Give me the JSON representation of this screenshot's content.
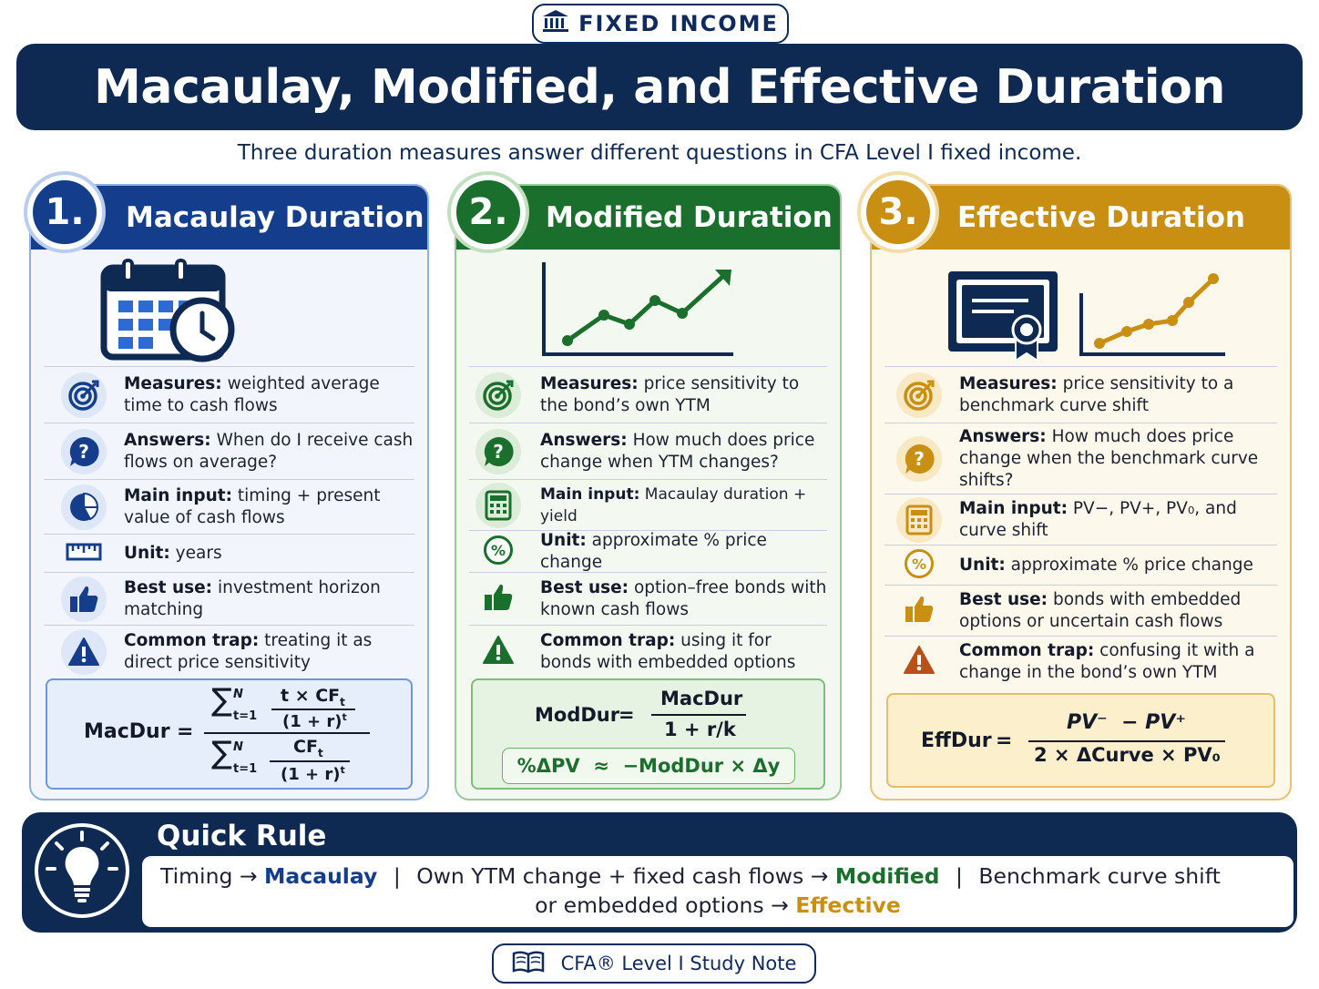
{
  "tag": {
    "icon": "bank-icon",
    "label": "FIXED INCOME"
  },
  "title": "Macaulay, Modified, and Effective Duration",
  "subtitle": "Three duration measures answer different questions in CFA Level I fixed income.",
  "colors": {
    "navy": "#0e2a52",
    "blue": "#143e8c",
    "green": "#1b6f2c",
    "gold": "#c98f12"
  },
  "cards": [
    {
      "number": "1.",
      "title": "Macaulay Duration",
      "illustration": "calendar-clock-icon",
      "rows": [
        {
          "icon": "target-icon",
          "label": "Measures:",
          "text": "weighted average time to cash flows"
        },
        {
          "icon": "question-icon",
          "label": "Answers:",
          "text": "When do I receive cash flows on average?"
        },
        {
          "icon": "pie-chart-icon",
          "label": "Main input:",
          "text": "timing + present value of cash flows"
        },
        {
          "icon": "ruler-icon",
          "label": "Unit:",
          "text": "years"
        },
        {
          "icon": "thumbs-up-icon",
          "label": "Best use:",
          "text": "investment horizon matching"
        },
        {
          "icon": "warning-icon",
          "label": "Common trap:",
          "text": "treating it as direct price sensitivity"
        }
      ],
      "formula": {
        "lhs": "MacDur",
        "eq": "=",
        "sigma": "∑",
        "sup": "N",
        "sub": "t=1",
        "num_top": "t × CF",
        "num_top_sub": "t",
        "num_bot": "(1 + r)",
        "num_bot_sup": "t",
        "den_top": "CF",
        "den_top_sub": "t",
        "den_bot": "(1 + r)",
        "den_bot_sup": "t"
      }
    },
    {
      "number": "2.",
      "title": "Modified Duration",
      "illustration": "line-chart-icon",
      "rows": [
        {
          "icon": "target-icon",
          "label": "Measures:",
          "text": "price sensitivity to the bond’s own YTM"
        },
        {
          "icon": "question-icon",
          "label": "Answers:",
          "text": "How much does price change when YTM changes?"
        },
        {
          "icon": "calculator-icon",
          "label": "Main input:",
          "text": "Macaulay duration + yield"
        },
        {
          "icon": "percent-icon",
          "label": "Unit:",
          "text": "approximate % price change"
        },
        {
          "icon": "thumbs-up-icon",
          "label": "Best use:",
          "text": "option–free bonds with known cash flows"
        },
        {
          "icon": "warning-icon",
          "label": "Common trap:",
          "text": "using it for bonds with embedded options"
        }
      ],
      "formula": {
        "lhs": "ModDur",
        "eq": "=",
        "num": "MacDur",
        "den": "1 + r/k",
        "approx": "%ΔPV  ≈  −ModDur × Δy"
      }
    },
    {
      "number": "3.",
      "title": "Effective Duration",
      "illustration": "certificate-chart-icon",
      "rows": [
        {
          "icon": "target-icon",
          "label": "Measures:",
          "text": "price sensitivity to a benchmark curve shift"
        },
        {
          "icon": "question-icon",
          "label": "Answers:",
          "text": "How much does price change when the benchmark curve shifts?"
        },
        {
          "icon": "calculator-icon",
          "label": "Main input:",
          "text": "PV−, PV+, PV₀, and curve shift"
        },
        {
          "icon": "percent-icon",
          "label": "Unit:",
          "text": "approximate % price change"
        },
        {
          "icon": "thumbs-up-icon",
          "label": "Best use:",
          "text": "bonds with embedded options or uncertain cash flows"
        },
        {
          "icon": "warning-icon",
          "label": "Common trap:",
          "text": "confusing it with a change in the bond’s own YTM"
        }
      ],
      "formula": {
        "lhs": "EffDur",
        "eq": "=",
        "num": "PV⁻  − PV⁺",
        "den": "2 × ΔCurve × PV₀"
      }
    }
  ],
  "quick_rule": {
    "icon": "lightbulb-icon",
    "title": "Quick Rule",
    "line1_a": "Timing →",
    "line1_b": "Macaulay",
    "sep": "|",
    "line1_c": "Own YTM change + fixed cash flows →",
    "line1_d": "Modified",
    "line1_e": "Benchmark curve shift",
    "line2_a": "or embedded options →",
    "line2_b": "Effective"
  },
  "footer": {
    "icon": "book-icon",
    "label": "CFA® Level I Study Note"
  }
}
